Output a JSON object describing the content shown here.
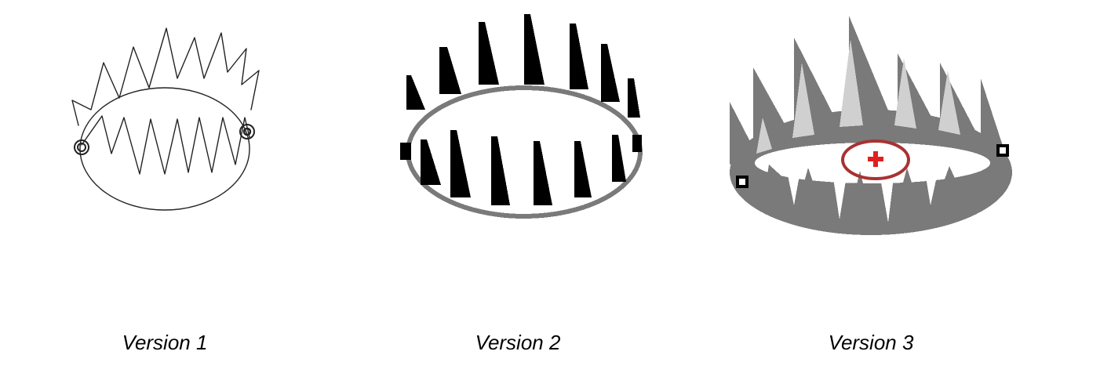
{
  "panels": [
    {
      "caption": "Version 1",
      "style": "pencil-sketch"
    },
    {
      "caption": "Version 2",
      "style": "black-pixel-art"
    },
    {
      "caption": "Version 3",
      "style": "gray-pixel-art-with-target"
    }
  ],
  "colors": {
    "ink": "#000000",
    "pixel_gray": "#7a7a7a",
    "light_gray": "#d0d0d0",
    "target_ring": "#a83232",
    "target_cross": "#e02020"
  }
}
